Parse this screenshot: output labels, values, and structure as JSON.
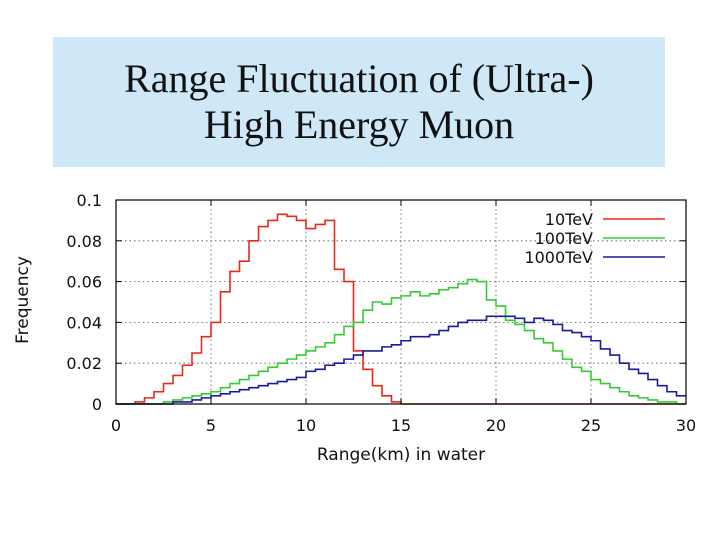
{
  "slide": {
    "title_line1": "Range Fluctuation of (Ultra-)",
    "title_line2": "High Energy Muon",
    "title_background": "#cfe8f7"
  },
  "chart_data": {
    "type": "line",
    "style": "histogram-step",
    "title": "",
    "xlabel": "Range(km) in water",
    "ylabel": "Frequency",
    "xlim": [
      0,
      30
    ],
    "ylim": [
      0,
      0.1
    ],
    "xticks": [
      0,
      5,
      10,
      15,
      20,
      25,
      30
    ],
    "yticks": [
      0,
      0.02,
      0.04,
      0.06,
      0.08,
      0.1
    ],
    "ytick_labels": [
      "0",
      "0.02",
      "0.04",
      "0.06",
      "0.08",
      "0.1"
    ],
    "grid": "dotted at ticks 10, 15, 20, 25 / 0.02 ... 0.08",
    "legend_position": "top-right",
    "bin_width": 0.5,
    "x": [
      0,
      0.5,
      1,
      1.5,
      2,
      2.5,
      3,
      3.5,
      4,
      4.5,
      5,
      5.5,
      6,
      6.5,
      7,
      7.5,
      8,
      8.5,
      9,
      9.5,
      10,
      10.5,
      11,
      11.5,
      12,
      12.5,
      13,
      13.5,
      14,
      14.5,
      15,
      15.5,
      16,
      16.5,
      17,
      17.5,
      18,
      18.5,
      19,
      19.5,
      20,
      20.5,
      21,
      21.5,
      22,
      22.5,
      23,
      23.5,
      24,
      24.5,
      25,
      25.5,
      26,
      26.5,
      27,
      27.5,
      28,
      28.5,
      29,
      29.5
    ],
    "series": [
      {
        "name": "10TeV",
        "color": "#e8281c",
        "values": [
          0,
          0,
          0.001,
          0.003,
          0.006,
          0.01,
          0.014,
          0.019,
          0.025,
          0.033,
          0.04,
          0.055,
          0.065,
          0.07,
          0.08,
          0.087,
          0.09,
          0.093,
          0.092,
          0.09,
          0.086,
          0.088,
          0.09,
          0.066,
          0.06,
          0.026,
          0.017,
          0.009,
          0.004,
          0.001,
          0,
          0,
          0,
          0,
          0,
          0,
          0,
          0,
          0,
          0,
          0,
          0,
          0,
          0,
          0,
          0,
          0,
          0,
          0,
          0,
          0,
          0,
          0,
          0,
          0,
          0,
          0,
          0,
          0,
          0
        ]
      },
      {
        "name": "100TeV",
        "color": "#33cc33",
        "values": [
          0,
          0,
          0,
          0,
          0,
          0.001,
          0.002,
          0.003,
          0.004,
          0.005,
          0.006,
          0.008,
          0.01,
          0.012,
          0.014,
          0.016,
          0.018,
          0.02,
          0.022,
          0.024,
          0.026,
          0.028,
          0.03,
          0.034,
          0.038,
          0.04,
          0.046,
          0.05,
          0.049,
          0.052,
          0.053,
          0.055,
          0.053,
          0.054,
          0.056,
          0.057,
          0.059,
          0.061,
          0.06,
          0.051,
          0.048,
          0.041,
          0.039,
          0.036,
          0.032,
          0.03,
          0.026,
          0.022,
          0.018,
          0.016,
          0.012,
          0.01,
          0.008,
          0.006,
          0.004,
          0.003,
          0.002,
          0.001,
          0.001,
          0
        ]
      },
      {
        "name": "1000TeV",
        "color": "#1a1a9a",
        "values": [
          0,
          0,
          0,
          0,
          0,
          0,
          0.001,
          0.001,
          0.002,
          0.003,
          0.004,
          0.005,
          0.006,
          0.007,
          0.008,
          0.009,
          0.01,
          0.011,
          0.012,
          0.013,
          0.016,
          0.017,
          0.019,
          0.02,
          0.022,
          0.024,
          0.026,
          0.026,
          0.028,
          0.029,
          0.031,
          0.033,
          0.033,
          0.034,
          0.036,
          0.038,
          0.04,
          0.041,
          0.041,
          0.043,
          0.043,
          0.043,
          0.042,
          0.04,
          0.042,
          0.041,
          0.039,
          0.036,
          0.035,
          0.033,
          0.031,
          0.027,
          0.024,
          0.02,
          0.017,
          0.015,
          0.012,
          0.009,
          0.006,
          0.004
        ]
      }
    ]
  }
}
